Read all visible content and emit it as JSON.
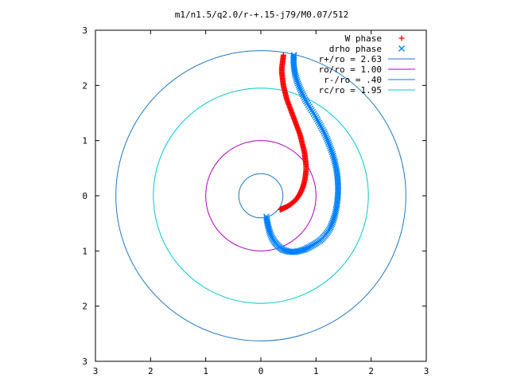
{
  "chart_data": {
    "type": "scatter",
    "title": "m1/n1.5/q2.0/r-+.15-j79/M0.07/512",
    "xlim": [
      -3,
      3
    ],
    "ylim": [
      -3,
      3
    ],
    "x_tick_values": [
      -3,
      -2,
      -1,
      0,
      1,
      2,
      3
    ],
    "y_tick_values": [
      -3,
      -2,
      -1,
      0,
      1,
      2,
      3
    ],
    "x_tick_labels": [
      "3",
      "2",
      "1",
      "0",
      "1",
      "2",
      "3"
    ],
    "y_tick_labels": [
      "3",
      "2",
      "1",
      "0",
      "1",
      "2",
      "3"
    ],
    "grid": false,
    "legend_position": "top-right",
    "series": [
      {
        "name": "W phase",
        "marker": "plus",
        "color": "#ff0000",
        "points": [
          [
            0.35,
            -0.25
          ],
          [
            0.38,
            -0.24
          ],
          [
            0.42,
            -0.22
          ],
          [
            0.47,
            -0.2
          ],
          [
            0.52,
            -0.17
          ],
          [
            0.57,
            -0.13
          ],
          [
            0.62,
            -0.09
          ],
          [
            0.66,
            -0.04
          ],
          [
            0.7,
            0.02
          ],
          [
            0.73,
            0.08
          ],
          [
            0.76,
            0.15
          ],
          [
            0.78,
            0.22
          ],
          [
            0.8,
            0.3
          ],
          [
            0.81,
            0.38
          ],
          [
            0.82,
            0.46
          ],
          [
            0.82,
            0.55
          ],
          [
            0.81,
            0.63
          ],
          [
            0.8,
            0.71
          ],
          [
            0.79,
            0.79
          ],
          [
            0.77,
            0.87
          ],
          [
            0.75,
            0.95
          ],
          [
            0.73,
            1.03
          ],
          [
            0.71,
            1.11
          ],
          [
            0.68,
            1.19
          ],
          [
            0.65,
            1.27
          ],
          [
            0.62,
            1.35
          ],
          [
            0.59,
            1.43
          ],
          [
            0.56,
            1.51
          ],
          [
            0.53,
            1.59
          ],
          [
            0.5,
            1.67
          ],
          [
            0.47,
            1.75
          ],
          [
            0.45,
            1.83
          ],
          [
            0.43,
            1.91
          ],
          [
            0.41,
            1.99
          ],
          [
            0.4,
            2.07
          ],
          [
            0.39,
            2.15
          ],
          [
            0.38,
            2.23
          ],
          [
            0.38,
            2.31
          ],
          [
            0.39,
            2.39
          ],
          [
            0.4,
            2.47
          ],
          [
            0.41,
            2.55
          ]
        ]
      },
      {
        "name": "drho phase",
        "marker": "x",
        "color": "#0080ff",
        "points": [
          [
            0.1,
            -0.38
          ],
          [
            0.12,
            -0.5
          ],
          [
            0.15,
            -0.62
          ],
          [
            0.19,
            -0.74
          ],
          [
            0.25,
            -0.84
          ],
          [
            0.32,
            -0.92
          ],
          [
            0.4,
            -0.98
          ],
          [
            0.5,
            -1.01
          ],
          [
            0.6,
            -1.02
          ],
          [
            0.7,
            -1.0
          ],
          [
            0.8,
            -0.97
          ],
          [
            0.9,
            -0.92
          ],
          [
            1.0,
            -0.86
          ],
          [
            1.1,
            -0.79
          ],
          [
            1.18,
            -0.7
          ],
          [
            1.25,
            -0.6
          ],
          [
            1.3,
            -0.48
          ],
          [
            1.34,
            -0.36
          ],
          [
            1.37,
            -0.22
          ],
          [
            1.39,
            -0.08
          ],
          [
            1.4,
            0.06
          ],
          [
            1.4,
            0.2
          ],
          [
            1.39,
            0.34
          ],
          [
            1.37,
            0.48
          ],
          [
            1.34,
            0.62
          ],
          [
            1.3,
            0.76
          ],
          [
            1.25,
            0.9
          ],
          [
            1.2,
            1.03
          ],
          [
            1.14,
            1.16
          ],
          [
            1.07,
            1.29
          ],
          [
            1.0,
            1.42
          ],
          [
            0.92,
            1.55
          ],
          [
            0.84,
            1.68
          ],
          [
            0.77,
            1.81
          ],
          [
            0.71,
            1.94
          ],
          [
            0.66,
            2.07
          ],
          [
            0.62,
            2.2
          ],
          [
            0.6,
            2.33
          ],
          [
            0.59,
            2.46
          ],
          [
            0.6,
            2.55
          ]
        ]
      },
      {
        "name": "r+/ro = 2.63",
        "type": "circle",
        "radius": 2.63,
        "color": "#1f77c4"
      },
      {
        "name": "ro/ro = 1.00",
        "type": "circle",
        "radius": 1.0,
        "color": "#b000c0"
      },
      {
        "name": "r-/ro = .40",
        "type": "circle",
        "radius": 0.4,
        "color": "#1f77c4"
      },
      {
        "name": "rc/ro = 1.95",
        "type": "circle",
        "radius": 1.95,
        "color": "#00c8d8"
      }
    ]
  }
}
